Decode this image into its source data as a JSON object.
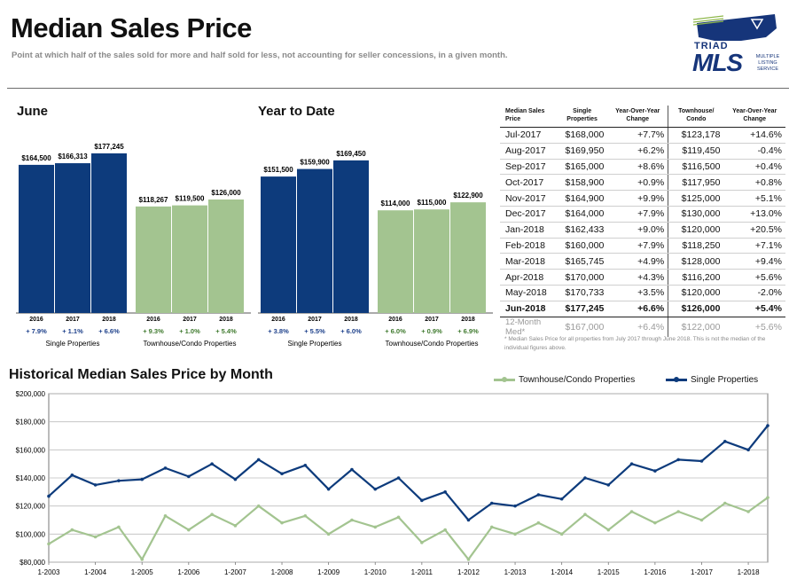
{
  "header": {
    "title": "Median Sales Price",
    "subtitle": "Point at which half of the sales sold for more and half sold for less, not accounting for seller concessions, in a given month."
  },
  "logo": {
    "name": "TRIAD",
    "mls": "MLS",
    "service": "MULTIPLE LISTING SERVICE"
  },
  "colors": {
    "single": "#0d3b7c",
    "townhouse": "#a3c490",
    "green_text": "#3f7a2e",
    "blue_text": "#1c3f8a"
  },
  "june": {
    "title": "June",
    "single_label": "Single Properties",
    "townhouse_label": "Townhouse/Condo Properties"
  },
  "ytd": {
    "title": "Year to Date",
    "single_label": "Single Properties",
    "townhouse_label": "Townhouse/Condo Properties"
  },
  "table": {
    "headers": [
      "Median Sales Price",
      "Single Properties",
      "Year-Over-Year Change",
      "Townhouse/ Condo",
      "Year-Over-Year Change"
    ],
    "rows": [
      [
        "Jul-2017",
        "$168,000",
        "+7.7%",
        "$123,178",
        "+14.6%"
      ],
      [
        "Aug-2017",
        "$169,950",
        "+6.2%",
        "$119,450",
        "-0.4%"
      ],
      [
        "Sep-2017",
        "$165,000",
        "+8.6%",
        "$116,500",
        "+0.4%"
      ],
      [
        "Oct-2017",
        "$158,900",
        "+0.9%",
        "$117,950",
        "+0.8%"
      ],
      [
        "Nov-2017",
        "$164,900",
        "+9.9%",
        "$125,000",
        "+5.1%"
      ],
      [
        "Dec-2017",
        "$164,000",
        "+7.9%",
        "$130,000",
        "+13.0%"
      ],
      [
        "Jan-2018",
        "$162,433",
        "+9.0%",
        "$120,000",
        "+20.5%"
      ],
      [
        "Feb-2018",
        "$160,000",
        "+7.9%",
        "$118,250",
        "+7.1%"
      ],
      [
        "Mar-2018",
        "$165,745",
        "+4.9%",
        "$128,000",
        "+9.4%"
      ],
      [
        "Apr-2018",
        "$170,000",
        "+4.3%",
        "$116,200",
        "+5.6%"
      ],
      [
        "May-2018",
        "$170,733",
        "+3.5%",
        "$120,000",
        "-2.0%"
      ],
      [
        "Jun-2018",
        "$177,245",
        "+6.6%",
        "$126,000",
        "+5.4%"
      ]
    ],
    "median_row": [
      "12-Month Med*",
      "$167,000",
      "+6.4%",
      "$122,000",
      "+5.6%"
    ],
    "footnote": "* Median Sales Price for all properties from July 2017 through June 2018. This is not the median of the individual figures above."
  },
  "historical": {
    "title": "Historical Median Sales Price by Month",
    "legend_townhouse": "Townhouse/Condo Properties",
    "legend_single": "Single Properties"
  },
  "chart_data": [
    {
      "type": "bar",
      "title": "June",
      "groups": [
        {
          "name": "Single Properties",
          "categories": [
            "2016",
            "2017",
            "2018"
          ],
          "values": [
            164500,
            166313,
            177245
          ],
          "labels": [
            "$164,500",
            "$166,313",
            "$177,245"
          ],
          "changes": [
            "+ 7.9%",
            "+ 1.1%",
            "+ 6.6%"
          ]
        },
        {
          "name": "Townhouse/Condo Properties",
          "categories": [
            "2016",
            "2017",
            "2018"
          ],
          "values": [
            118267,
            119500,
            126000
          ],
          "labels": [
            "$118,267",
            "$119,500",
            "$126,000"
          ],
          "changes": [
            "+ 9.3%",
            "+ 1.0%",
            "+ 5.4%"
          ]
        }
      ],
      "ylim": [
        0,
        190000
      ]
    },
    {
      "type": "bar",
      "title": "Year to Date",
      "groups": [
        {
          "name": "Single Properties",
          "categories": [
            "2016",
            "2017",
            "2018"
          ],
          "values": [
            151500,
            159900,
            169450
          ],
          "labels": [
            "$151,500",
            "$159,900",
            "$169,450"
          ],
          "changes": [
            "+ 3.8%",
            "+ 5.5%",
            "+ 6.0%"
          ]
        },
        {
          "name": "Townhouse/Condo Properties",
          "categories": [
            "2016",
            "2017",
            "2018"
          ],
          "values": [
            114000,
            115000,
            122900
          ],
          "labels": [
            "$114,000",
            "$115,000",
            "$122,900"
          ],
          "changes": [
            "+ 6.0%",
            "+ 0.9%",
            "+ 6.9%"
          ]
        }
      ],
      "ylim": [
        0,
        190000
      ]
    },
    {
      "type": "line",
      "title": "Historical Median Sales Price by Month",
      "x_ticks": [
        "1-2003",
        "1-2004",
        "1-2005",
        "1-2006",
        "1-2007",
        "1-2008",
        "1-2009",
        "1-2010",
        "1-2011",
        "1-2012",
        "1-2013",
        "1-2014",
        "1-2015",
        "1-2016",
        "1-2017",
        "1-2018"
      ],
      "y_ticks": [
        "$80,000",
        "$100,000",
        "$120,000",
        "$140,000",
        "$160,000",
        "$180,000",
        "$200,000"
      ],
      "ylim": [
        80000,
        200000
      ],
      "xlim": [
        "2003-01",
        "2018-06"
      ],
      "grid": true,
      "legend": "top-right",
      "series": [
        {
          "name": "Single Properties",
          "x": [
            "2003-01",
            "2003-07",
            "2004-01",
            "2004-07",
            "2005-01",
            "2005-07",
            "2006-01",
            "2006-07",
            "2007-01",
            "2007-07",
            "2008-01",
            "2008-07",
            "2009-01",
            "2009-07",
            "2010-01",
            "2010-07",
            "2011-01",
            "2011-07",
            "2012-01",
            "2012-07",
            "2013-01",
            "2013-07",
            "2014-01",
            "2014-07",
            "2015-01",
            "2015-07",
            "2016-01",
            "2016-07",
            "2017-01",
            "2017-07",
            "2018-01",
            "2018-06"
          ],
          "y": [
            127000,
            142000,
            135000,
            138000,
            139000,
            147000,
            141000,
            150000,
            139000,
            153000,
            143000,
            149000,
            132000,
            146000,
            132000,
            140000,
            124000,
            130000,
            110000,
            122000,
            120000,
            128000,
            125000,
            140000,
            135000,
            150000,
            145000,
            153000,
            152000,
            166000,
            160000,
            177245
          ]
        },
        {
          "name": "Townhouse/Condo Properties",
          "x": [
            "2003-01",
            "2003-07",
            "2004-01",
            "2004-07",
            "2005-01",
            "2005-07",
            "2006-01",
            "2006-07",
            "2007-01",
            "2007-07",
            "2008-01",
            "2008-07",
            "2009-01",
            "2009-07",
            "2010-01",
            "2010-07",
            "2011-01",
            "2011-07",
            "2012-01",
            "2012-07",
            "2013-01",
            "2013-07",
            "2014-01",
            "2014-07",
            "2015-01",
            "2015-07",
            "2016-01",
            "2016-07",
            "2017-01",
            "2017-07",
            "2018-01",
            "2018-06"
          ],
          "y": [
            93000,
            103000,
            98000,
            105000,
            82000,
            113000,
            103000,
            114000,
            106000,
            120000,
            108000,
            113000,
            100000,
            110000,
            105000,
            112000,
            94000,
            103000,
            82000,
            105000,
            100000,
            108000,
            100000,
            114000,
            103000,
            116000,
            108000,
            116000,
            110000,
            122000,
            116000,
            126000
          ]
        }
      ]
    }
  ]
}
